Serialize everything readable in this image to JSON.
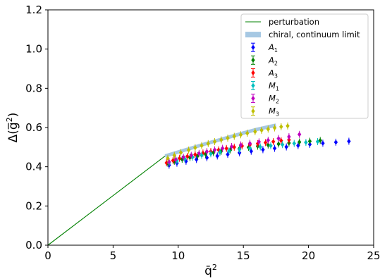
{
  "chart_data": {
    "type": "scatter",
    "title": "",
    "xlabel": "q̄",
    "xlabel_sup": "2",
    "ylabel_main": "Δ(g̅",
    "ylabel_sup": "2",
    "ylabel_close": ")",
    "xlim": [
      0,
      25
    ],
    "ylim": [
      0,
      1.2
    ],
    "xticks": [
      0,
      5,
      10,
      15,
      20,
      25
    ],
    "yticks": [
      0.0,
      0.2,
      0.4,
      0.6,
      0.8,
      1.0,
      1.2
    ],
    "xtick_labels": [
      "0",
      "5",
      "10",
      "15",
      "20",
      "25"
    ],
    "ytick_labels": [
      "0.0",
      "0.2",
      "0.4",
      "0.6",
      "0.8",
      "1.0",
      "1.2"
    ],
    "grid": false,
    "legend_position": "top-right",
    "series": [
      {
        "name": "perturbation",
        "label_main": "perturbation",
        "label_sub": "",
        "kind": "line",
        "color": "#008000",
        "x": [
          0,
          9.0
        ],
        "y": [
          0.0,
          0.455
        ]
      },
      {
        "name": "chiral, continuum limit",
        "label_main": "chiral, continuum limit",
        "label_sub": "",
        "kind": "band",
        "color": "#a6c8e3",
        "x": [
          9.0,
          10.0,
          11.0,
          12.0,
          13.0,
          14.0,
          15.0,
          16.0,
          17.5
        ],
        "y": [
          0.455,
          0.475,
          0.495,
          0.515,
          0.534,
          0.553,
          0.572,
          0.59,
          0.612
        ]
      },
      {
        "name": "A1",
        "label_main": "A",
        "label_sub": "1",
        "kind": "points",
        "color": "#0000ff",
        "x": [
          9.3,
          9.9,
          10.6,
          11.4,
          12.2,
          13.0,
          13.8,
          14.7,
          15.6,
          16.5,
          17.4,
          18.3,
          19.2,
          20.1,
          21.1,
          22.1,
          23.1
        ],
        "y": [
          0.408,
          0.418,
          0.428,
          0.437,
          0.446,
          0.455,
          0.463,
          0.471,
          0.479,
          0.487,
          0.494,
          0.501,
          0.508,
          0.514,
          0.52,
          0.525,
          0.53
        ]
      },
      {
        "name": "A2",
        "label_main": "A",
        "label_sub": "2",
        "kind": "points",
        "color": "#008000",
        "x": [
          9.2,
          9.7,
          10.3,
          10.9,
          11.5,
          12.1,
          12.7,
          13.3,
          14.0,
          14.7,
          15.4,
          16.1,
          16.9,
          17.7,
          18.5,
          19.3,
          20.1,
          20.9
        ],
        "y": [
          0.418,
          0.428,
          0.438,
          0.447,
          0.456,
          0.464,
          0.472,
          0.479,
          0.486,
          0.493,
          0.499,
          0.505,
          0.511,
          0.516,
          0.521,
          0.526,
          0.53,
          0.534
        ]
      },
      {
        "name": "A3",
        "label_main": "A",
        "label_sub": "3",
        "kind": "points",
        "color": "#ff0000",
        "x": [
          9.1,
          9.6,
          10.1,
          10.7,
          11.3,
          11.9,
          12.5,
          13.1,
          13.7,
          14.3,
          14.9,
          15.5,
          16.1,
          16.7,
          17.3,
          17.9,
          18.5
        ],
        "y": [
          0.42,
          0.432,
          0.443,
          0.453,
          0.462,
          0.47,
          0.478,
          0.486,
          0.493,
          0.5,
          0.506,
          0.512,
          0.518,
          0.523,
          0.528,
          0.533,
          0.537
        ]
      },
      {
        "name": "M1",
        "label_main": "M",
        "label_sub": "1",
        "kind": "points",
        "color": "#00bfbf",
        "x": [
          9.3,
          9.9,
          10.5,
          11.1,
          11.8,
          12.5,
          13.2,
          13.9,
          14.7,
          15.5,
          16.3,
          17.1,
          18.0,
          18.9,
          19.8,
          20.7
        ],
        "y": [
          0.42,
          0.43,
          0.44,
          0.449,
          0.458,
          0.466,
          0.474,
          0.481,
          0.488,
          0.495,
          0.501,
          0.507,
          0.513,
          0.519,
          0.524,
          0.528
        ]
      },
      {
        "name": "M2",
        "label_main": "M",
        "label_sub": "2",
        "kind": "points",
        "color": "#bf00bf",
        "x": [
          9.3,
          9.8,
          10.4,
          11.0,
          11.6,
          12.2,
          12.8,
          13.4,
          14.1,
          14.8,
          15.5,
          16.2,
          16.9,
          17.7,
          18.5,
          19.3
        ],
        "y": [
          0.425,
          0.437,
          0.448,
          0.458,
          0.468,
          0.477,
          0.486,
          0.494,
          0.503,
          0.511,
          0.519,
          0.527,
          0.535,
          0.544,
          0.553,
          0.565
        ]
      },
      {
        "name": "M3",
        "label_main": "M",
        "label_sub": "3",
        "kind": "points",
        "color": "#bfbf00",
        "x": [
          9.2,
          9.7,
          10.2,
          10.8,
          11.3,
          11.8,
          12.3,
          12.8,
          13.3,
          13.8,
          14.3,
          14.8,
          15.3,
          15.9,
          16.4,
          16.9,
          17.4,
          17.9,
          18.4
        ],
        "y": [
          0.443,
          0.458,
          0.472,
          0.485,
          0.497,
          0.508,
          0.518,
          0.528,
          0.537,
          0.546,
          0.555,
          0.563,
          0.571,
          0.579,
          0.586,
          0.592,
          0.598,
          0.604,
          0.608
        ]
      }
    ]
  }
}
